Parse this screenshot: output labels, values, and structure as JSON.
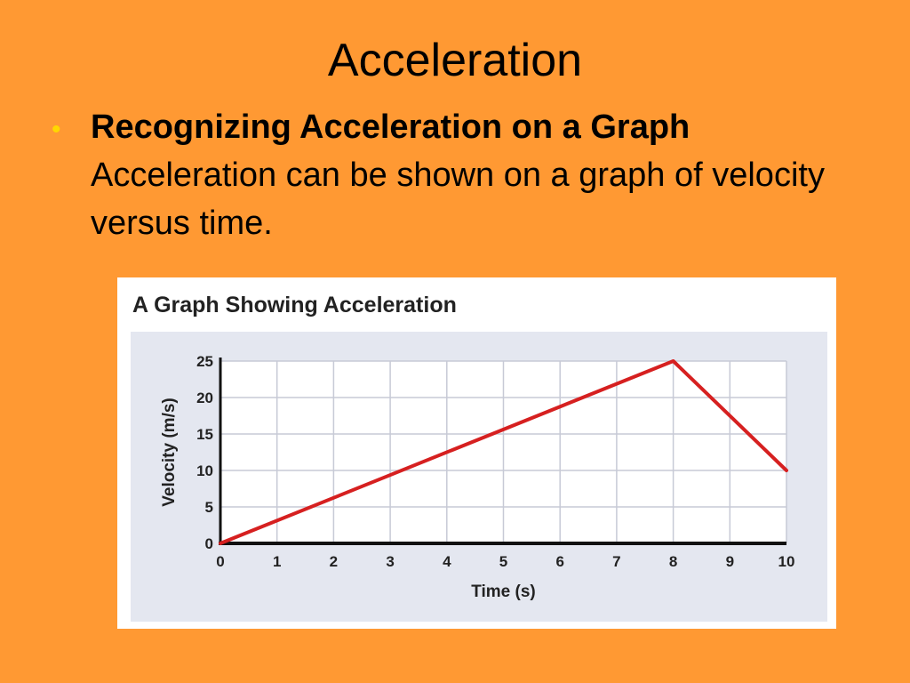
{
  "slide": {
    "title": "Acceleration",
    "background_color": "#FF9933",
    "bullet": {
      "dot": "•",
      "dot_color": "#FFD700",
      "heading": "Recognizing Acceleration on a Graph",
      "body": "Acceleration can be shown on a graph of velocity versus time."
    }
  },
  "chart_data": {
    "type": "line",
    "title": "A Graph Showing Acceleration",
    "xlabel": "Time (s)",
    "ylabel": "Velocity (m/s)",
    "xlim": [
      0,
      10
    ],
    "ylim": [
      0,
      25
    ],
    "x_ticks": [
      0,
      1,
      2,
      3,
      4,
      5,
      6,
      7,
      8,
      9,
      10
    ],
    "y_ticks": [
      0,
      5,
      10,
      15,
      20,
      25
    ],
    "grid": true,
    "plot_background": "#E4E7F0",
    "grid_color": "#C7CAD6",
    "series": [
      {
        "color": "#D62020",
        "x": [
          0,
          8,
          10
        ],
        "y": [
          0,
          25,
          10
        ]
      }
    ]
  }
}
